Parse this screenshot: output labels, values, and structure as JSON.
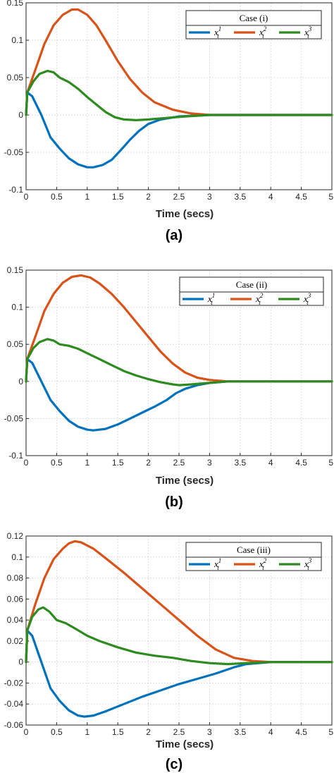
{
  "chart_data": [
    {
      "type": "line",
      "caption": "(a)",
      "xlabel": "Time (secs)",
      "ylabel": "",
      "xlim": [
        0,
        5
      ],
      "ylim": [
        -0.1,
        0.15
      ],
      "x_ticks": [
        "0",
        "0.5",
        "1",
        "1.5",
        "2",
        "2.5",
        "3",
        "3.5",
        "4",
        "4.5",
        "5"
      ],
      "y_ticks": [
        "-0.1",
        "-0.05",
        "0",
        "0.05",
        "0.1",
        "0.15"
      ],
      "y_tick_values": [
        -0.1,
        -0.05,
        0,
        0.05,
        0.1,
        0.15
      ],
      "grid": true,
      "legend": {
        "title": "Case (i)",
        "placement": "top-right"
      },
      "series": [
        {
          "name": "x_t^1",
          "base": "x",
          "sup": "1",
          "sub": "t",
          "color": "#0072BD",
          "points": [
            [
              0,
              0
            ],
            [
              0.02,
              0.03
            ],
            [
              0.1,
              0.025
            ],
            [
              0.25,
              0.0
            ],
            [
              0.4,
              -0.03
            ],
            [
              0.55,
              -0.045
            ],
            [
              0.7,
              -0.058
            ],
            [
              0.85,
              -0.066
            ],
            [
              1.0,
              -0.07
            ],
            [
              1.1,
              -0.07
            ],
            [
              1.25,
              -0.067
            ],
            [
              1.4,
              -0.06
            ],
            [
              1.55,
              -0.047
            ],
            [
              1.7,
              -0.033
            ],
            [
              1.85,
              -0.021
            ],
            [
              2.0,
              -0.012
            ],
            [
              2.2,
              -0.006
            ],
            [
              2.5,
              -0.002
            ],
            [
              3.0,
              0.0
            ],
            [
              5.0,
              0.0
            ]
          ]
        },
        {
          "name": "x_t^2",
          "base": "x",
          "sup": "2",
          "sub": "t",
          "color": "#D95319",
          "points": [
            [
              0,
              0
            ],
            [
              0.02,
              0.03
            ],
            [
              0.15,
              0.06
            ],
            [
              0.3,
              0.095
            ],
            [
              0.45,
              0.12
            ],
            [
              0.6,
              0.134
            ],
            [
              0.75,
              0.141
            ],
            [
              0.85,
              0.141
            ],
            [
              1.0,
              0.134
            ],
            [
              1.15,
              0.12
            ],
            [
              1.3,
              0.1
            ],
            [
              1.5,
              0.072
            ],
            [
              1.7,
              0.048
            ],
            [
              1.9,
              0.03
            ],
            [
              2.1,
              0.017
            ],
            [
              2.4,
              0.007
            ],
            [
              2.7,
              0.002
            ],
            [
              3.0,
              0.0
            ],
            [
              5.0,
              0.0
            ]
          ]
        },
        {
          "name": "x_t^3",
          "base": "x",
          "sup": "3",
          "sub": "t",
          "color": "#2E8B1F",
          "points": [
            [
              0,
              0
            ],
            [
              0.02,
              0.03
            ],
            [
              0.12,
              0.045
            ],
            [
              0.22,
              0.055
            ],
            [
              0.35,
              0.059
            ],
            [
              0.45,
              0.057
            ],
            [
              0.55,
              0.05
            ],
            [
              0.7,
              0.044
            ],
            [
              0.85,
              0.035
            ],
            [
              1.0,
              0.024
            ],
            [
              1.15,
              0.014
            ],
            [
              1.3,
              0.004
            ],
            [
              1.45,
              -0.003
            ],
            [
              1.6,
              -0.006
            ],
            [
              1.8,
              -0.007
            ],
            [
              2.0,
              -0.006
            ],
            [
              2.3,
              -0.004
            ],
            [
              2.6,
              -0.002
            ],
            [
              3.0,
              0.0
            ],
            [
              5.0,
              0.0
            ]
          ]
        }
      ]
    },
    {
      "type": "line",
      "caption": "(b)",
      "xlabel": "Time (secs)",
      "ylabel": "",
      "xlim": [
        0,
        5
      ],
      "ylim": [
        -0.1,
        0.15
      ],
      "x_ticks": [
        "0",
        "0.5",
        "1",
        "1.5",
        "2",
        "2.5",
        "3",
        "3.5",
        "4",
        "4.5",
        "5"
      ],
      "y_ticks": [
        "-0.1",
        "-0.05",
        "0",
        "0.05",
        "0.1",
        "0.15"
      ],
      "y_tick_values": [
        -0.1,
        -0.05,
        0,
        0.05,
        0.1,
        0.15
      ],
      "grid": true,
      "legend": {
        "title": "Case  (ii)",
        "placement": "top-right"
      },
      "series": [
        {
          "name": "x_t^1",
          "base": "x",
          "sup": "1",
          "sub": "t",
          "color": "#0072BD",
          "points": [
            [
              0,
              0
            ],
            [
              0.02,
              0.03
            ],
            [
              0.1,
              0.025
            ],
            [
              0.25,
              0.0
            ],
            [
              0.4,
              -0.025
            ],
            [
              0.55,
              -0.04
            ],
            [
              0.7,
              -0.053
            ],
            [
              0.85,
              -0.061
            ],
            [
              1.0,
              -0.065
            ],
            [
              1.1,
              -0.066
            ],
            [
              1.3,
              -0.064
            ],
            [
              1.5,
              -0.058
            ],
            [
              1.7,
              -0.05
            ],
            [
              1.9,
              -0.042
            ],
            [
              2.1,
              -0.034
            ],
            [
              2.3,
              -0.025
            ],
            [
              2.45,
              -0.016
            ],
            [
              2.6,
              -0.01
            ],
            [
              2.8,
              -0.005
            ],
            [
              3.0,
              -0.002
            ],
            [
              3.3,
              0.0
            ],
            [
              5.0,
              0.0
            ]
          ]
        },
        {
          "name": "x_t^2",
          "base": "x",
          "sup": "2",
          "sub": "t",
          "color": "#D95319",
          "points": [
            [
              0,
              0
            ],
            [
              0.02,
              0.03
            ],
            [
              0.15,
              0.06
            ],
            [
              0.3,
              0.095
            ],
            [
              0.45,
              0.118
            ],
            [
              0.6,
              0.133
            ],
            [
              0.75,
              0.141
            ],
            [
              0.9,
              0.143
            ],
            [
              1.05,
              0.14
            ],
            [
              1.2,
              0.132
            ],
            [
              1.4,
              0.118
            ],
            [
              1.6,
              0.1
            ],
            [
              1.8,
              0.08
            ],
            [
              2.0,
              0.06
            ],
            [
              2.2,
              0.04
            ],
            [
              2.4,
              0.024
            ],
            [
              2.6,
              0.012
            ],
            [
              2.8,
              0.005
            ],
            [
              3.0,
              0.002
            ],
            [
              3.3,
              0.0
            ],
            [
              5.0,
              0.0
            ]
          ]
        },
        {
          "name": "x_t^3",
          "base": "x",
          "sup": "3",
          "sub": "t",
          "color": "#2E8B1F",
          "points": [
            [
              0,
              0
            ],
            [
              0.02,
              0.03
            ],
            [
              0.12,
              0.045
            ],
            [
              0.22,
              0.053
            ],
            [
              0.35,
              0.057
            ],
            [
              0.45,
              0.055
            ],
            [
              0.55,
              0.05
            ],
            [
              0.7,
              0.048
            ],
            [
              0.85,
              0.044
            ],
            [
              1.0,
              0.038
            ],
            [
              1.2,
              0.03
            ],
            [
              1.4,
              0.022
            ],
            [
              1.6,
              0.014
            ],
            [
              1.8,
              0.008
            ],
            [
              2.0,
              0.003
            ],
            [
              2.2,
              -0.001
            ],
            [
              2.4,
              -0.004
            ],
            [
              2.5,
              -0.005
            ],
            [
              2.7,
              -0.004
            ],
            [
              3.0,
              -0.002
            ],
            [
              3.3,
              0.0
            ],
            [
              5.0,
              0.0
            ]
          ]
        }
      ]
    },
    {
      "type": "line",
      "caption": "(c)",
      "xlabel": "Time (secs)",
      "ylabel": "",
      "xlim": [
        0,
        5
      ],
      "ylim": [
        -0.06,
        0.12
      ],
      "x_ticks": [
        "0",
        "0.5",
        "1",
        "1.5",
        "2",
        "2.5",
        "3",
        "3.5",
        "4",
        "4.5",
        "5"
      ],
      "y_ticks": [
        "-0.06",
        "-0.04",
        "-0.02",
        "0",
        "0.02",
        "0.04",
        "0.06",
        "0.08",
        "0.1",
        "0.12"
      ],
      "y_tick_values": [
        -0.06,
        -0.04,
        -0.02,
        0,
        0.02,
        0.04,
        0.06,
        0.08,
        0.1,
        0.12
      ],
      "grid": true,
      "legend": {
        "title": "Case (iii)",
        "placement": "top-right"
      },
      "series": [
        {
          "name": "x_t^1",
          "base": "x",
          "sup": "1",
          "sub": "t",
          "color": "#0072BD",
          "points": [
            [
              0,
              0
            ],
            [
              0.02,
              0.03
            ],
            [
              0.1,
              0.025
            ],
            [
              0.25,
              0.0
            ],
            [
              0.4,
              -0.025
            ],
            [
              0.55,
              -0.037
            ],
            [
              0.7,
              -0.046
            ],
            [
              0.85,
              -0.051
            ],
            [
              0.95,
              -0.052
            ],
            [
              1.1,
              -0.051
            ],
            [
              1.3,
              -0.047
            ],
            [
              1.6,
              -0.04
            ],
            [
              1.9,
              -0.033
            ],
            [
              2.2,
              -0.027
            ],
            [
              2.5,
              -0.021
            ],
            [
              2.8,
              -0.016
            ],
            [
              3.1,
              -0.011
            ],
            [
              3.4,
              -0.005
            ],
            [
              3.6,
              -0.002
            ],
            [
              4.0,
              0.0
            ],
            [
              5.0,
              0.0
            ]
          ]
        },
        {
          "name": "x_t^2",
          "base": "x",
          "sup": "2",
          "sub": "t",
          "color": "#D95319",
          "points": [
            [
              0,
              0
            ],
            [
              0.02,
              0.03
            ],
            [
              0.15,
              0.055
            ],
            [
              0.3,
              0.08
            ],
            [
              0.45,
              0.098
            ],
            [
              0.6,
              0.108
            ],
            [
              0.7,
              0.113
            ],
            [
              0.8,
              0.115
            ],
            [
              0.9,
              0.114
            ],
            [
              1.1,
              0.108
            ],
            [
              1.3,
              0.099
            ],
            [
              1.6,
              0.085
            ],
            [
              1.9,
              0.07
            ],
            [
              2.2,
              0.055
            ],
            [
              2.5,
              0.04
            ],
            [
              2.8,
              0.025
            ],
            [
              3.1,
              0.012
            ],
            [
              3.4,
              0.004
            ],
            [
              3.7,
              0.001
            ],
            [
              4.0,
              0.0
            ],
            [
              5.0,
              0.0
            ]
          ]
        },
        {
          "name": "x_t^3",
          "base": "x",
          "sup": "3",
          "sub": "t",
          "color": "#2E8B1F",
          "points": [
            [
              0,
              0
            ],
            [
              0.02,
              0.03
            ],
            [
              0.1,
              0.043
            ],
            [
              0.2,
              0.05
            ],
            [
              0.28,
              0.052
            ],
            [
              0.38,
              0.048
            ],
            [
              0.5,
              0.04
            ],
            [
              0.65,
              0.037
            ],
            [
              0.8,
              0.032
            ],
            [
              1.0,
              0.025
            ],
            [
              1.2,
              0.02
            ],
            [
              1.5,
              0.014
            ],
            [
              1.8,
              0.009
            ],
            [
              2.1,
              0.006
            ],
            [
              2.4,
              0.004
            ],
            [
              2.7,
              0.001
            ],
            [
              3.0,
              -0.001
            ],
            [
              3.3,
              -0.002
            ],
            [
              3.6,
              -0.001
            ],
            [
              4.0,
              0.0
            ],
            [
              5.0,
              0.0
            ]
          ]
        }
      ]
    }
  ]
}
